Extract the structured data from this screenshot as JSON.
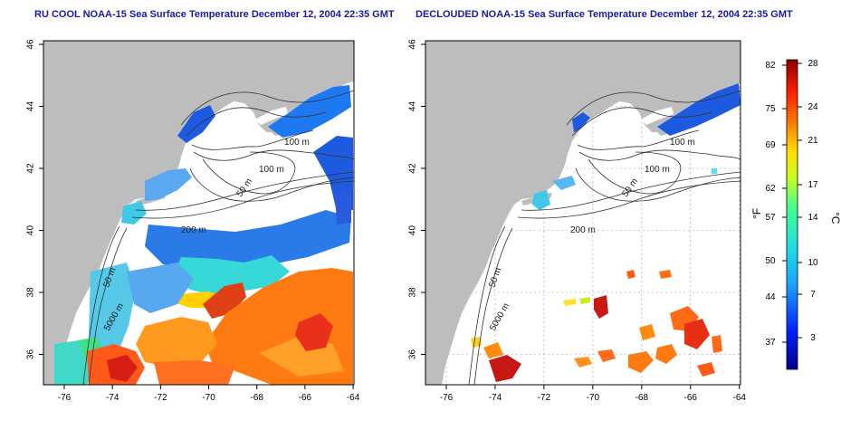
{
  "titles": {
    "left": "RU COOL NOAA-15 Sea Surface Temperature December 12, 2004 22:35 GMT",
    "right": "DECLOUDED NOAA-15 Sea Surface Temperature December 12, 2004 22:35 GMT"
  },
  "axes": {
    "x_ticks": [
      "-76",
      "-74",
      "-72",
      "-70",
      "-68",
      "-66",
      "-64"
    ],
    "y_ticks": [
      "46",
      "44",
      "42",
      "40",
      "38",
      "36"
    ]
  },
  "contour_labels": {
    "left": [
      "100 m",
      "100 m",
      "50 m",
      "200 m",
      "50 m",
      "5000 m"
    ],
    "right": [
      "100 m",
      "100 m",
      "50 m",
      "200 m",
      "50 m",
      "5000 m"
    ]
  },
  "colorbar": {
    "f_label": "°F",
    "c_label": "°C",
    "f_ticks": [
      "82",
      "75",
      "69",
      "62",
      "57",
      "50",
      "44",
      "37"
    ],
    "c_ticks": [
      "28",
      "24",
      "21",
      "17",
      "14",
      "10",
      "7",
      "3"
    ]
  },
  "colors": {
    "land": "#bdbdbd",
    "ocean": "#ffffff",
    "title": "#1a1aa6",
    "contour": "#303030",
    "grid": "#9a9a9a"
  }
}
